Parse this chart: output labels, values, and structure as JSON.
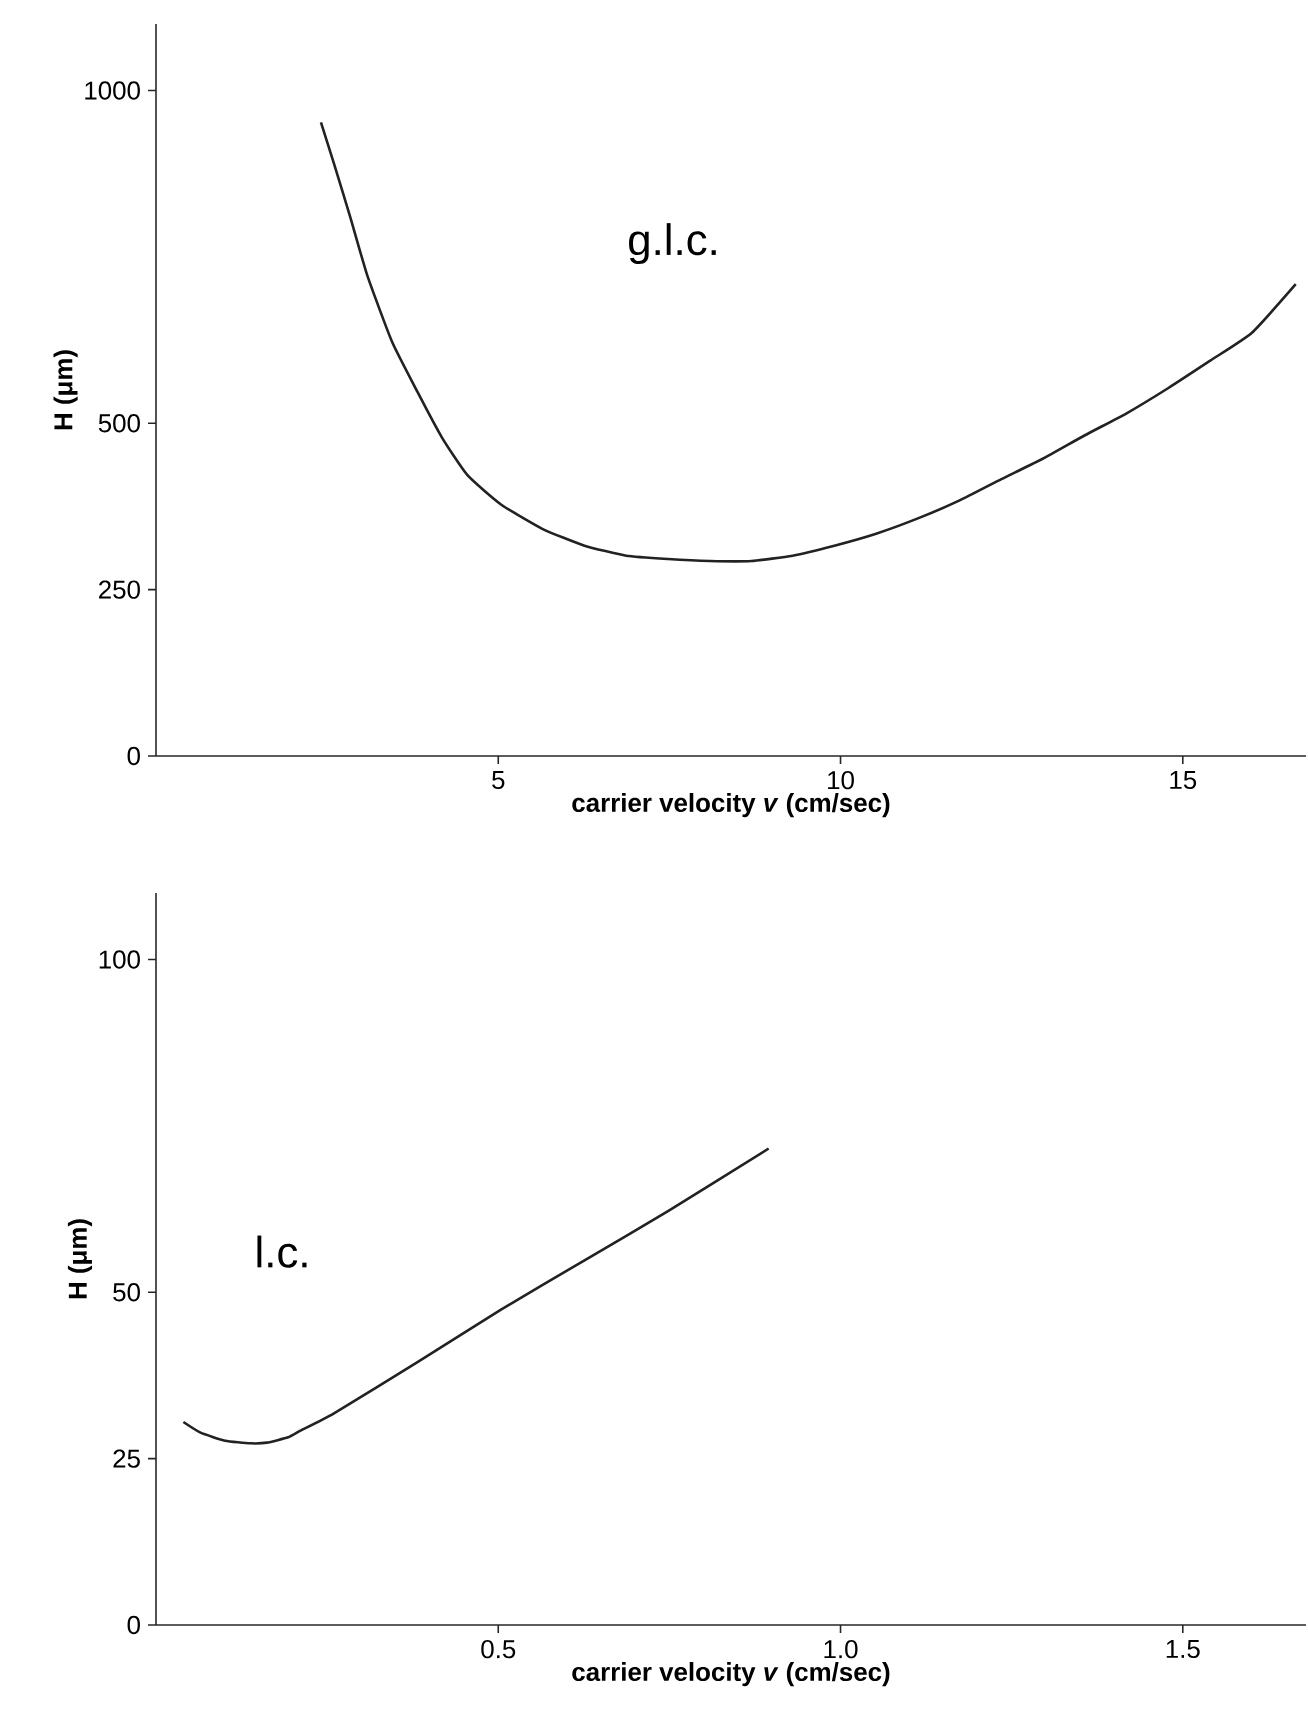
{
  "chart_data": [
    {
      "type": "line",
      "xlabel": "carrier velocity *v* (cm/sec)",
      "ylabel": "H (μm)",
      "annotations": [
        "g.l.c."
      ],
      "xlim": [
        0,
        16.8
      ],
      "ylim": [
        0,
        1100
      ],
      "xticks": [
        5,
        10,
        15
      ],
      "yticks": [
        0,
        250,
        500,
        1000
      ],
      "line_style": "solid",
      "series": [
        {
          "color": "#222222",
          "x": [
            2.41,
            2.6,
            2.84,
            3.09,
            3.45,
            3.82,
            4.18,
            4.55,
            5.04,
            5.65,
            6.26,
            6.87,
            7.48,
            8.09,
            8.7,
            9.3,
            9.91,
            10.52,
            11.13,
            11.74,
            12.35,
            12.96,
            13.57,
            14.18,
            14.79,
            15.4,
            16.01,
            16.65
          ],
          "values": [
            952,
            890,
            809,
            721,
            622,
            547,
            478,
            422,
            378,
            341,
            316,
            301,
            296,
            293,
            293,
            301,
            316,
            334,
            357,
            384,
            416,
            447,
            482,
            515,
            553,
            594,
            636,
            709
          ]
        }
      ]
    },
    {
      "type": "line",
      "xlabel": "carrier velocity *v* (cm/sec)",
      "ylabel": "H (μm)",
      "annotations": [
        "l.c."
      ],
      "xlim": [
        0,
        1.68
      ],
      "ylim": [
        0,
        110
      ],
      "xticks": [
        {
          "value": 0.5,
          "label": "0.5"
        },
        {
          "value": 1.0,
          "label": "1.0"
        },
        {
          "value": 1.5,
          "label": "1.5"
        }
      ],
      "yticks": [
        0,
        25,
        50,
        100
      ],
      "line_style": "solid",
      "series": [
        {
          "color": "#222222",
          "x": [
            0.04,
            0.065,
            0.101,
            0.138,
            0.162,
            0.193,
            0.211,
            0.26,
            0.382,
            0.504,
            0.626,
            0.748,
            0.895
          ],
          "values": [
            30.5,
            28.9,
            27.7,
            27.3,
            27.4,
            28.2,
            29.2,
            31.8,
            39.5,
            47.4,
            54.8,
            62.2,
            71.6
          ]
        }
      ]
    }
  ]
}
